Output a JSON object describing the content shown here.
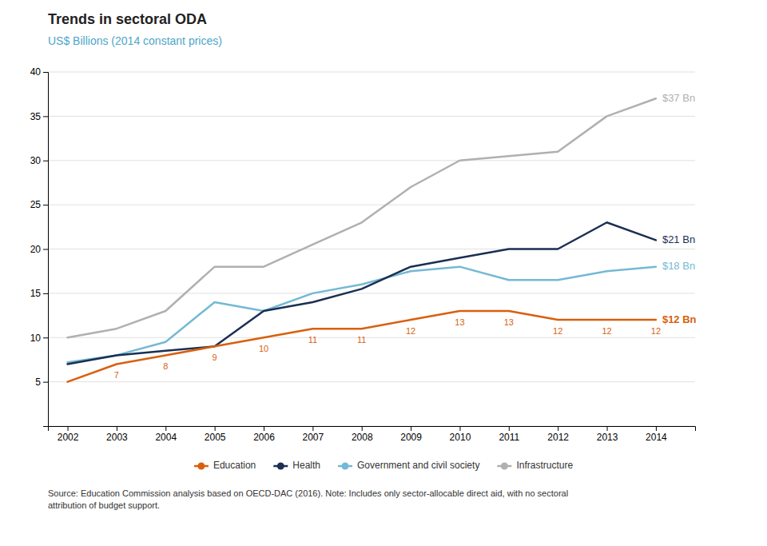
{
  "chart_data": {
    "type": "line",
    "title": "Trends in sectoral ODA",
    "subtitle": "US$ Billions (2014 constant prices)",
    "x": [
      2002,
      2003,
      2004,
      2005,
      2006,
      2007,
      2008,
      2009,
      2010,
      2011,
      2012,
      2013,
      2014
    ],
    "series": [
      {
        "name": "Education",
        "color": "#d95f0e",
        "values": [
          5,
          7,
          8,
          9,
          10,
          11,
          11,
          12,
          13,
          13,
          12,
          12,
          12
        ],
        "data_labels": true,
        "value_labels": [
          null,
          "7",
          "8",
          "9",
          "10",
          "11",
          "11",
          "12",
          "13",
          "13",
          "12",
          "12",
          "12"
        ]
      },
      {
        "name": "Health",
        "color": "#1a2f52",
        "values": [
          7.0,
          8.0,
          8.5,
          9.0,
          13.0,
          14.0,
          15.5,
          18.0,
          19.0,
          20.0,
          20.0,
          23.0,
          21.0
        ]
      },
      {
        "name": "Government and civil society",
        "color": "#74b9d5",
        "values": [
          7.2,
          8.0,
          9.5,
          14.0,
          13.0,
          15.0,
          16.0,
          17.5,
          18.0,
          16.5,
          16.5,
          17.5,
          18.0
        ]
      },
      {
        "name": "Infrastructure",
        "color": "#b0b0b0",
        "values": [
          10.0,
          11.0,
          13.0,
          18.0,
          18.0,
          20.5,
          23.0,
          27.0,
          30.0,
          30.5,
          31.0,
          35.0,
          37.0
        ]
      }
    ],
    "annotations": [
      {
        "text": "$12 Bn",
        "x": 2014,
        "y": 12,
        "color": "#d95f0e"
      },
      {
        "text": "$21 Bn",
        "x": 2014,
        "y": 21,
        "color": "#1a2f52"
      },
      {
        "text": "$18 Bn",
        "x": 2014,
        "y": 18,
        "color": "#74b9d5"
      },
      {
        "text": "$37 Bn",
        "x": 2014,
        "y": 37,
        "color": "#b0b0b0"
      }
    ],
    "source": "Source: Education Commission analysis based on OECD-DAC (2016). Note: Includes only sector-allocable direct aid, with no sectoral\nattribution of budget support.",
    "xlim": [
      2001.6,
      2014.8
    ],
    "xticks": [
      2002,
      2003,
      2004,
      2005,
      2006,
      2007,
      2008,
      2009,
      2010,
      2011,
      2012,
      2013,
      2014
    ],
    "ylim": [
      0,
      40
    ],
    "yticks": [
      {
        "value": 0,
        "label": null
      },
      5,
      10,
      15,
      20,
      25,
      30,
      35,
      40
    ],
    "grid": true,
    "legend": "bottom"
  }
}
